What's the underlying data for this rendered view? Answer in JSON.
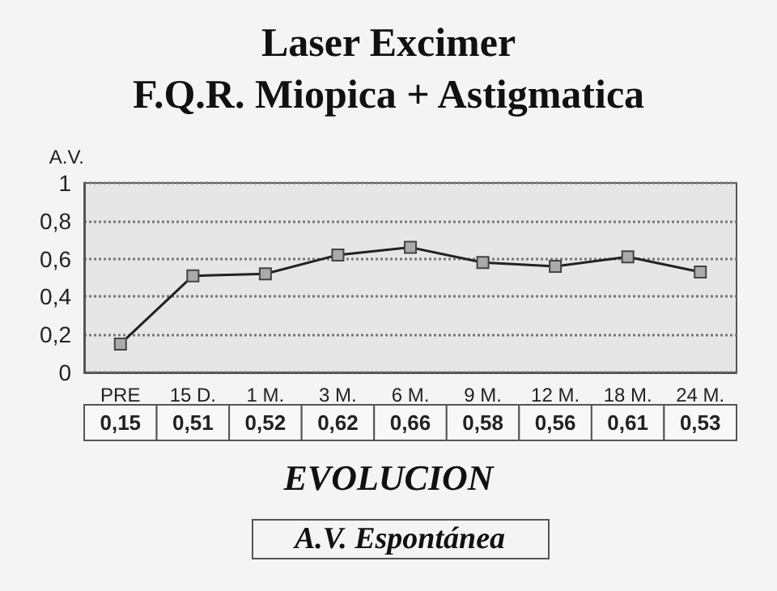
{
  "chart_data": {
    "type": "line",
    "title": "Laser Excimer\nF.Q.R. Miopica + Astigmatica",
    "xlabel": "EVOLUCION",
    "ylabel": "A.V.",
    "annotations": [
      "A.V. Espontánea"
    ],
    "categories": [
      "PRE",
      "15 D.",
      "1 M.",
      "3 M.",
      "6 M.",
      "9 M.",
      "12 M.",
      "18 M.",
      "24 M."
    ],
    "values": [
      0.15,
      0.51,
      0.52,
      0.62,
      0.66,
      0.58,
      0.56,
      0.61,
      0.53
    ],
    "value_labels": [
      "0,15",
      "0,51",
      "0,52",
      "0,62",
      "0,66",
      "0,58",
      "0,56",
      "0,61",
      "0,53"
    ],
    "color": "#222222",
    "ylim": [
      0,
      1
    ],
    "yticks": [
      {
        "value": 0,
        "label": "0"
      },
      {
        "value": 0.2,
        "label": "0,2"
      },
      {
        "value": 0.4,
        "label": "0,4"
      },
      {
        "value": 0.6,
        "label": "0,6"
      },
      {
        "value": 0.8,
        "label": "0,8"
      },
      {
        "value": 1,
        "label": "1"
      }
    ],
    "grid": "y",
    "marker": "square",
    "line_style": "solid"
  }
}
